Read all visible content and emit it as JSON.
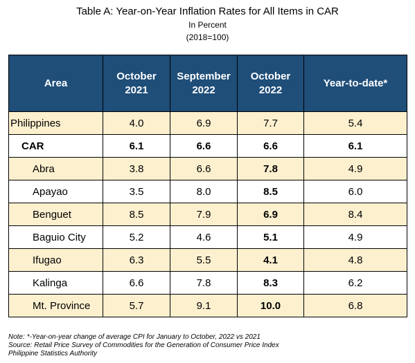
{
  "title": "Table A: Year-on-Year Inflation Rates for All Items in CAR",
  "subtitle1": "In Percent",
  "subtitle2": "(2018=100)",
  "headers": [
    "Area",
    "October 2021",
    "September 2022",
    "October 2022",
    "Year-to-date*"
  ],
  "rows": [
    {
      "area": "Philippines",
      "values": [
        "4.0",
        "6.9",
        "7.7",
        "5.4"
      ]
    },
    {
      "area": "CAR",
      "values": [
        "6.1",
        "6.6",
        "6.6",
        "6.1"
      ]
    },
    {
      "area": "Abra",
      "values": [
        "3.8",
        "6.6",
        "7.8",
        "4.9"
      ]
    },
    {
      "area": "Apayao",
      "values": [
        "3.5",
        "8.0",
        "8.5",
        "6.0"
      ]
    },
    {
      "area": "Benguet",
      "values": [
        "8.5",
        "7.9",
        "6.9",
        "8.4"
      ]
    },
    {
      "area": "Baguio City",
      "values": [
        "5.2",
        "4.6",
        "5.1",
        "4.9"
      ]
    },
    {
      "area": "Ifugao",
      "values": [
        "6.3",
        "5.5",
        "4.1",
        "4.8"
      ]
    },
    {
      "area": "Kalinga",
      "values": [
        "6.6",
        "7.8",
        "8.3",
        "6.2"
      ]
    },
    {
      "area": "Mt. Province",
      "values": [
        "5.7",
        "9.1",
        "10.0",
        "6.8"
      ]
    }
  ],
  "notes": [
    "Note: *-Year-on-year change of average CPI for January to October, 2022 vs 2021",
    "Source: Retail Price Survey of Commodities for the Generation of Consumer Price Index",
    "Philippine Statistics Authority"
  ],
  "colors": {
    "header_bg": "#1f4e79",
    "shade_row": "#fdf0cf"
  }
}
